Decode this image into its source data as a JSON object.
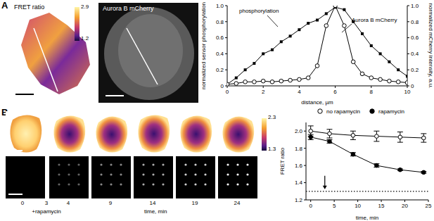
{
  "panel_labels": [
    "A",
    "B"
  ],
  "images": {
    "A": {
      "fret_title": "FRET ratio",
      "fret_colorbar": {
        "range": [
          1.2,
          2.9
        ],
        "ticks": [
          2.9,
          1.2
        ]
      },
      "mcherry_title": "Aurora B mCherry"
    },
    "B": {
      "colorbar": {
        "range": [
          1.3,
          2.3
        ],
        "ticks": [
          2.3,
          1.3
        ]
      },
      "times": [
        0,
        3,
        4,
        9,
        14,
        19,
        24
      ],
      "treatment_label": "+rapamycin",
      "treatment_time": 3,
      "xlabel": "time, min"
    }
  },
  "chart_data": [
    {
      "type": "line",
      "xlabel": "distance, µm",
      "ylabel": "normalized sensor phosphorylation",
      "y2label": "normalized mCherry intensity, a.u.",
      "x": [
        0,
        0.5,
        1,
        1.5,
        2,
        2.5,
        3,
        3.5,
        4,
        4.5,
        5,
        5.5,
        6,
        6.5,
        7,
        7.5,
        8,
        8.5,
        9,
        9.5,
        10
      ],
      "xlim": [
        0,
        10
      ],
      "xticks": [
        0,
        2,
        4,
        6,
        8,
        10
      ],
      "ylim": [
        0,
        1
      ],
      "yticks": [
        0,
        0.2,
        0.4,
        0.6,
        0.8,
        {
          "value": 1,
          "label": "1.0"
        }
      ],
      "y2lim": [
        0,
        1
      ],
      "y2ticks": [
        0,
        0.2,
        0.4,
        0.6,
        0.8,
        {
          "value": 1,
          "label": "1.0"
        }
      ],
      "series": [
        {
          "name": "phosphorylation",
          "color": "#000000",
          "marker": "square",
          "values": [
            0.02,
            0.1,
            0.2,
            0.28,
            0.4,
            0.45,
            0.55,
            0.62,
            0.7,
            0.78,
            0.82,
            0.9,
            0.98,
            0.95,
            0.8,
            0.65,
            0.5,
            0.4,
            0.3,
            0.2,
            0.12
          ]
        },
        {
          "name": "Aurora B mCherry",
          "color": "#000000",
          "marker": "circle_open",
          "axis": "y2",
          "values": [
            0.02,
            0.03,
            0.05,
            0.05,
            0.06,
            0.05,
            0.06,
            0.07,
            0.08,
            0.1,
            0.25,
            0.75,
            1.0,
            0.75,
            0.3,
            0.15,
            0.1,
            0.08,
            0.06,
            0.05,
            0.04
          ]
        }
      ]
    },
    {
      "type": "line",
      "xlabel": "time, min",
      "ylabel": "FRET ratio",
      "x": [
        0,
        4,
        9,
        14,
        19,
        24
      ],
      "xlim": [
        -1,
        25
      ],
      "xticks": [
        0,
        5,
        10,
        15,
        20,
        25
      ],
      "ylim": [
        1.2,
        2.1
      ],
      "yticks": [
        1.2,
        1.4,
        1.6,
        1.8,
        {
          "value": 2,
          "label": "2.0"
        }
      ],
      "legend": "top right",
      "hline": 1.3,
      "arrow_x": 3,
      "series": [
        {
          "name": "no rapamycin",
          "color": "#000000",
          "marker": "circle_open",
          "values": [
            2.0,
            1.97,
            1.95,
            1.94,
            1.93,
            1.92
          ],
          "errors": [
            0.06,
            0.05,
            0.05,
            0.06,
            0.06,
            0.05
          ]
        },
        {
          "name": "rapamycin",
          "color": "#000000",
          "marker": "circle",
          "values": [
            1.93,
            1.88,
            1.73,
            1.6,
            1.55,
            1.52
          ],
          "errors": [
            0.03,
            0.02,
            0.02,
            0.02,
            0.01,
            0.01
          ]
        }
      ]
    }
  ]
}
